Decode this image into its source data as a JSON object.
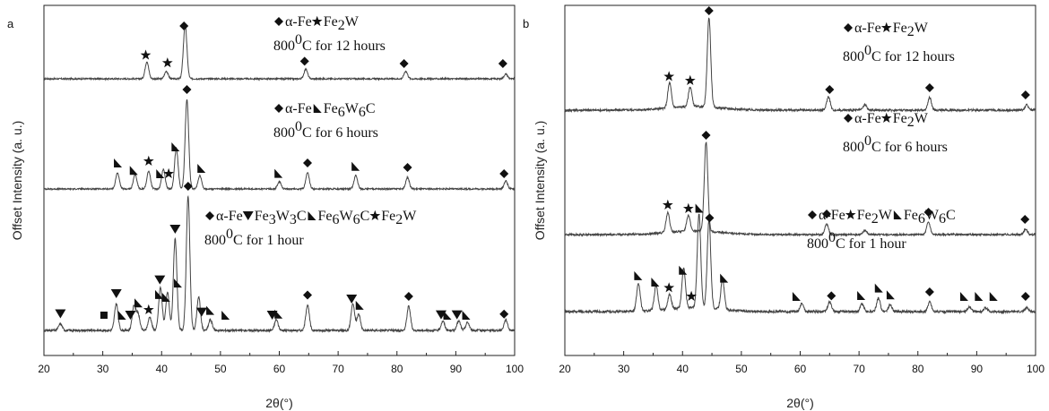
{
  "chart_data": [
    {
      "panel_label": "a",
      "type": "line",
      "xlabel": "2θ(°)",
      "ylabel": "Offset Intensity (a. u.)",
      "xlim": [
        20,
        100
      ],
      "xticks": [
        "20",
        "30",
        "40",
        "50",
        "60",
        "70",
        "80",
        "90",
        "100"
      ],
      "grid": false,
      "series": [
        {
          "legend_lines": [
            [
              {
                "sym": "diamond",
                "t": " α-Fe "
              },
              {
                "sym": "star",
                "t": " Fe"
              },
              {
                "sub": "2"
              },
              {
                "t": "W"
              }
            ],
            [
              {
                "t": "800 "
              },
              {
                "sup": "0"
              },
              {
                "t": "C for 12 hours"
              }
            ]
          ],
          "peaks": [
            [
              37.5,
              0.32
            ],
            [
              40.8,
              0.14
            ],
            [
              44.0,
              1.0
            ],
            [
              64.5,
              0.18
            ],
            [
              81.5,
              0.14
            ],
            [
              98.5,
              0.09
            ]
          ],
          "markers": [
            {
              "sym": "star",
              "x": 37.3
            },
            {
              "sym": "star",
              "x": 41.0
            },
            {
              "sym": "diamond",
              "x": 43.8
            },
            {
              "sym": "diamond",
              "x": 64.3
            },
            {
              "sym": "diamond",
              "x": 81.2
            },
            {
              "sym": "diamond",
              "x": 98.0
            }
          ]
        },
        {
          "legend_lines": [
            [
              {
                "sym": "diamond",
                "t": " α-Fe "
              },
              {
                "sym": "tri",
                "t": " Fe"
              },
              {
                "sub": "6"
              },
              {
                "t": "W"
              },
              {
                "sub": "6"
              },
              {
                "t": "C"
              }
            ],
            [
              {
                "t": "800 "
              },
              {
                "sup": "0"
              },
              {
                "t": "C for 6 hours"
              }
            ]
          ],
          "peaks": [
            [
              32.5,
              0.18
            ],
            [
              35.5,
              0.16
            ],
            [
              37.8,
              0.2
            ],
            [
              40.3,
              0.22
            ],
            [
              42.5,
              0.45
            ],
            [
              44.3,
              1.0
            ],
            [
              46.5,
              0.15
            ],
            [
              60.0,
              0.08
            ],
            [
              64.8,
              0.18
            ],
            [
              73.0,
              0.15
            ],
            [
              81.8,
              0.13
            ],
            [
              98.5,
              0.09
            ]
          ],
          "markers": [
            {
              "sym": "tri",
              "x": 32.5
            },
            {
              "sym": "tri",
              "x": 35.2
            },
            {
              "sym": "star",
              "x": 37.8
            },
            {
              "sym": "tri",
              "x": 39.7
            },
            {
              "sym": "star",
              "x": 41.2
            },
            {
              "sym": "tri",
              "x": 42.3
            },
            {
              "sym": "diamond",
              "x": 44.3
            },
            {
              "sym": "tri",
              "x": 46.7
            },
            {
              "sym": "tri",
              "x": 59.8
            },
            {
              "sym": "diamond",
              "x": 64.8
            },
            {
              "sym": "tri",
              "x": 72.9
            },
            {
              "sym": "diamond",
              "x": 81.8
            },
            {
              "sym": "diamond",
              "x": 98.2
            }
          ]
        },
        {
          "legend_lines": [
            [
              {
                "sym": "diamond",
                "t": " α-Fe "
              },
              {
                "sym": "tridown",
                "t": " Fe"
              },
              {
                "sub": "3"
              },
              {
                "t": "W"
              },
              {
                "sub": "3"
              },
              {
                "t": "C "
              },
              {
                "sym": "tri",
                "t": " Fe"
              },
              {
                "sub": "6"
              },
              {
                "t": "W"
              },
              {
                "sub": "6"
              },
              {
                "t": "C "
              },
              {
                "sym": "star",
                "t": " Fe"
              },
              {
                "sub": "2"
              },
              {
                "t": "W"
              }
            ],
            [
              {
                "t": "800 "
              },
              {
                "sup": "0"
              },
              {
                "t": "C for 1 hour"
              }
            ]
          ],
          "peaks": [
            [
              22.8,
              0.05
            ],
            [
              32.3,
              0.2
            ],
            [
              35.3,
              0.18
            ],
            [
              36.0,
              0.12
            ],
            [
              38.0,
              0.1
            ],
            [
              39.8,
              0.32
            ],
            [
              41.0,
              0.28
            ],
            [
              42.3,
              0.68
            ],
            [
              44.5,
              1.0
            ],
            [
              46.3,
              0.25
            ],
            [
              48.3,
              0.08
            ],
            [
              59.5,
              0.08
            ],
            [
              64.8,
              0.19
            ],
            [
              72.5,
              0.2
            ],
            [
              73.5,
              0.12
            ],
            [
              82.0,
              0.18
            ],
            [
              87.8,
              0.07
            ],
            [
              90.5,
              0.07
            ],
            [
              92.0,
              0.06
            ],
            [
              98.5,
              0.08
            ]
          ],
          "markers": [
            {
              "sym": "tridown",
              "x": 22.8
            },
            {
              "sym": "square",
              "x": 30.2
            },
            {
              "sym": "tridown",
              "x": 32.3
            },
            {
              "sym": "tri",
              "x": 33.2
            },
            {
              "sym": "tridown",
              "x": 34.7
            },
            {
              "sym": "tri",
              "x": 36.0
            },
            {
              "sym": "star",
              "x": 37.8
            },
            {
              "sym": "tri",
              "x": 39.5
            },
            {
              "sym": "tridown",
              "x": 39.7
            },
            {
              "sym": "tri",
              "x": 40.7
            },
            {
              "sym": "tridown",
              "x": 42.3
            },
            {
              "sym": "tri",
              "x": 42.7
            },
            {
              "sym": "diamond",
              "x": 44.5
            },
            {
              "sym": "tridown",
              "x": 46.8
            },
            {
              "sym": "tri",
              "x": 48.2
            },
            {
              "sym": "tri",
              "x": 50.8
            },
            {
              "sym": "tridown",
              "x": 58.8
            },
            {
              "sym": "tri",
              "x": 59.8
            },
            {
              "sym": "diamond",
              "x": 64.8
            },
            {
              "sym": "tridown",
              "x": 72.3
            },
            {
              "sym": "tri",
              "x": 73.6
            },
            {
              "sym": "diamond",
              "x": 82.0
            },
            {
              "sym": "tridown",
              "x": 87.5
            },
            {
              "sym": "tri",
              "x": 88.5
            },
            {
              "sym": "tridown",
              "x": 90.2
            },
            {
              "sym": "tri",
              "x": 91.7
            },
            {
              "sym": "diamond",
              "x": 98.2
            }
          ]
        }
      ]
    },
    {
      "panel_label": "b",
      "type": "line",
      "xlabel": "2θ(°)",
      "ylabel": "Offset Intensity (a. u.)",
      "xlim": [
        20,
        100
      ],
      "xticks": [
        "20",
        "30",
        "40",
        "50",
        "60",
        "70",
        "80",
        "90",
        "100"
      ],
      "grid": false,
      "series": [
        {
          "legend_lines": [
            [
              {
                "sym": "diamond",
                "t": " α-Fe "
              },
              {
                "sym": "star",
                "t": " Fe"
              },
              {
                "sub": "2"
              },
              {
                "t": "W"
              }
            ],
            [
              {
                "t": "800 "
              },
              {
                "sup": "0"
              },
              {
                "t": "C for 12 hours"
              }
            ]
          ],
          "peaks": [
            [
              37.8,
              0.28
            ],
            [
              41.3,
              0.22
            ],
            [
              44.5,
              1.0
            ],
            [
              64.8,
              0.15
            ],
            [
              71.0,
              0.06
            ],
            [
              82.0,
              0.14
            ],
            [
              98.5,
              0.06
            ]
          ],
          "markers": [
            {
              "sym": "star",
              "x": 37.7
            },
            {
              "sym": "star",
              "x": 41.3
            },
            {
              "sym": "diamond",
              "x": 44.5
            },
            {
              "sym": "diamond",
              "x": 65.0
            },
            {
              "sym": "diamond",
              "x": 82.0
            },
            {
              "sym": "diamond",
              "x": 98.3
            }
          ]
        },
        {
          "legend_lines": [
            [
              {
                "sym": "diamond",
                "t": " α-Fe "
              },
              {
                "sym": "star",
                "t": " Fe"
              },
              {
                "sub": "2"
              },
              {
                "t": "W"
              }
            ],
            [
              {
                "t": "800 "
              },
              {
                "sup": "0"
              },
              {
                "t": "C for 6 hours"
              }
            ]
          ],
          "peaks": [
            [
              37.5,
              0.22
            ],
            [
              41.0,
              0.18
            ],
            [
              44.0,
              1.0
            ],
            [
              64.5,
              0.12
            ],
            [
              71.0,
              0.05
            ],
            [
              81.8,
              0.14
            ],
            [
              98.3,
              0.06
            ]
          ],
          "markers": [
            {
              "sym": "star",
              "x": 37.5
            },
            {
              "sym": "star",
              "x": 41.0
            },
            {
              "sym": "diamond",
              "x": 44.0
            },
            {
              "sym": "diamond",
              "x": 64.5
            },
            {
              "sym": "diamond",
              "x": 81.8
            },
            {
              "sym": "diamond",
              "x": 98.2
            }
          ]
        },
        {
          "legend_lines": [
            [
              {
                "sym": "diamond",
                "t": " α-Fe "
              },
              {
                "sym": "star",
                "t": " Fe"
              },
              {
                "sub": "2"
              },
              {
                "t": "W "
              },
              {
                "sym": "tri",
                "t": "Fe"
              },
              {
                "sub": "6"
              },
              {
                "t": "W"
              },
              {
                "sub": "6"
              },
              {
                "t": "C"
              }
            ],
            [
              {
                "t": "800 "
              },
              {
                "sup": "0"
              },
              {
                "t": "C for 1 hour"
              }
            ]
          ],
          "peaks": [
            [
              32.5,
              0.28
            ],
            [
              35.5,
              0.25
            ],
            [
              37.8,
              0.15
            ],
            [
              40.2,
              0.4
            ],
            [
              42.8,
              0.95
            ],
            [
              44.5,
              0.9
            ],
            [
              46.8,
              0.3
            ],
            [
              60.3,
              0.08
            ],
            [
              65.0,
              0.1
            ],
            [
              70.5,
              0.08
            ],
            [
              73.3,
              0.14
            ],
            [
              75.3,
              0.07
            ],
            [
              82.0,
              0.1
            ],
            [
              88.8,
              0.05
            ],
            [
              91.5,
              0.04
            ],
            [
              98.5,
              0.04
            ]
          ],
          "markers": [
            {
              "sym": "tri",
              "x": 32.4
            },
            {
              "sym": "tri",
              "x": 35.3
            },
            {
              "sym": "star",
              "x": 37.7
            },
            {
              "sym": "tri",
              "x": 40.0
            },
            {
              "sym": "star",
              "x": 41.5
            },
            {
              "sym": "tri",
              "x": 42.8
            },
            {
              "sym": "diamond",
              "x": 44.6
            },
            {
              "sym": "tri",
              "x": 47.0
            },
            {
              "sym": "tri",
              "x": 59.3
            },
            {
              "sym": "diamond",
              "x": 65.3
            },
            {
              "sym": "tri",
              "x": 70.3
            },
            {
              "sym": "tri",
              "x": 73.3
            },
            {
              "sym": "tri",
              "x": 75.3
            },
            {
              "sym": "diamond",
              "x": 82.0
            },
            {
              "sym": "tri",
              "x": 87.8
            },
            {
              "sym": "tri",
              "x": 90.3
            },
            {
              "sym": "tri",
              "x": 92.8
            },
            {
              "sym": "diamond",
              "x": 98.3
            }
          ]
        }
      ]
    }
  ]
}
